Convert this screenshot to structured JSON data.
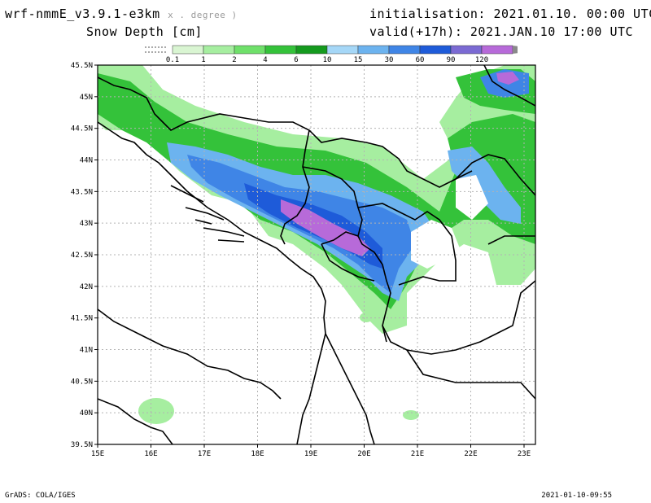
{
  "header": {
    "model": "wrf-nmmE_v3.9.1-e3km",
    "model_suffix": "x . degree )",
    "variable": "Snow Depth [cm]",
    "init_label": "initialisation:",
    "init_value": "2021.01.10.  00:00 UTC",
    "valid_label": "valid(+17h):",
    "valid_value": "2021.JAN.10  17:00 UTC"
  },
  "legend": {
    "levels": [
      "0.1",
      "1",
      "2",
      "4",
      "6",
      "10",
      "15",
      "30",
      "60",
      "90",
      "120"
    ],
    "colors": [
      "#d9f5d2",
      "#a6eea0",
      "#6fe06a",
      "#34c23a",
      "#149a1e",
      "#a5d7f7",
      "#6cb3ef",
      "#3f85e6",
      "#1e5bd9",
      "#7b6ad3",
      "#b76ad9",
      "#8a8a8a"
    ]
  },
  "map": {
    "lat_labels": [
      "45.5N",
      "45N",
      "44.5N",
      "44N",
      "43.5N",
      "43N",
      "42.5N",
      "42N",
      "41.5N",
      "41N",
      "40.5N",
      "40N",
      "39.5N"
    ],
    "lon_labels": [
      "15E",
      "16E",
      "17E",
      "18E",
      "19E",
      "20E",
      "21E",
      "22E",
      "23E"
    ],
    "land_color": "#ffffff",
    "grid": true
  },
  "footer": {
    "left": "GrADS: COLA/IGES",
    "right": "2021-01-10-09:55"
  }
}
